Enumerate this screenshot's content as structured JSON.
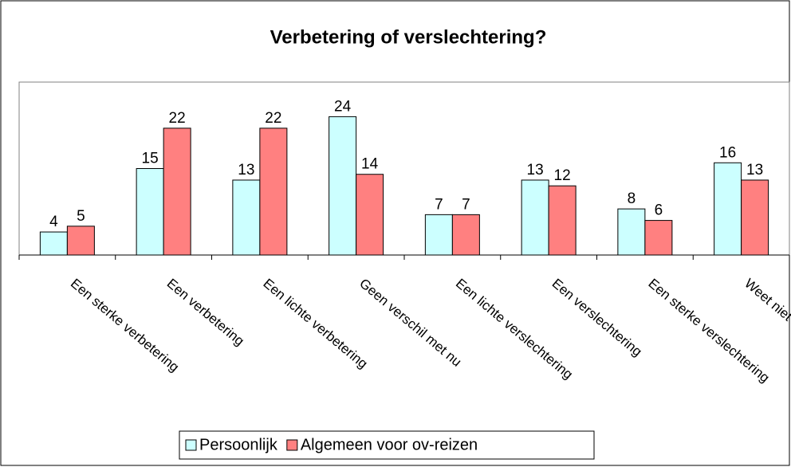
{
  "chart_data": {
    "type": "bar",
    "title": "Verbetering of verslechtering?",
    "categories": [
      "Een sterke verbetering",
      "Een verbetering",
      "Een lichte verbetering",
      "Geen verschil met nu",
      "Een lichte verslechtering",
      "Een verslechtering",
      "Een sterke verslechtering",
      "Weet niet"
    ],
    "series": [
      {
        "name": "Persoonlijk",
        "color": "#ccffff",
        "values": [
          4,
          15,
          13,
          24,
          7,
          13,
          8,
          16
        ]
      },
      {
        "name": "Algemeen voor ov-reizen",
        "color": "#ff8080",
        "values": [
          5,
          22,
          22,
          14,
          7,
          12,
          6,
          13
        ]
      }
    ],
    "ylim": [
      0,
      30
    ],
    "legend": "bottom"
  }
}
